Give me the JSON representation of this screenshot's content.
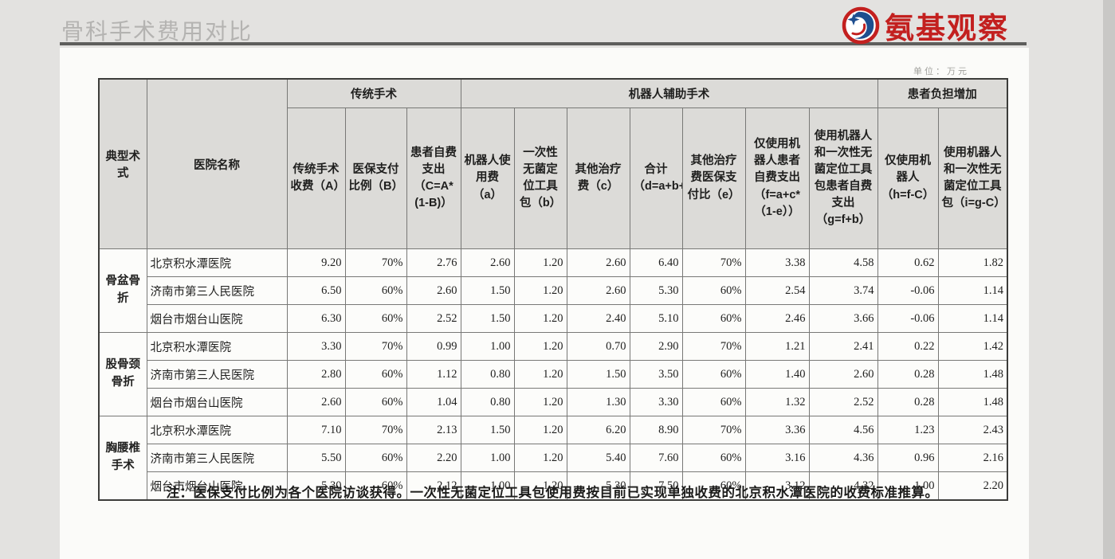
{
  "slide": {
    "title": "骨科手术费用对比",
    "unit_note": "单位：万元",
    "footnote": "注：医保支付比例为各个医院访谈获得。一次性无菌定位工具包使用费按目前已实现单独收费的北京积水潭医院的收费标准推算。"
  },
  "logo": {
    "text": "氨基观察",
    "accent_red": "#c3201f",
    "accent_blue": "#1d4e8f"
  },
  "table": {
    "corner_headers": [
      "典型术式",
      "医院名称"
    ],
    "groups": [
      {
        "label": "传统手术",
        "span": 3
      },
      {
        "label": "机器人辅助手术",
        "span": 7
      },
      {
        "label": "患者负担增加",
        "span": 2
      }
    ],
    "columns": [
      "传统手术收费（A）",
      "医保支付比例（B）",
      "患者自费支出（C=A*(1-B)）",
      "机器人使用费（a）",
      "一次性无菌定位工具包（b）",
      "其他治疗费（c）",
      "合计（d=a+b+c）",
      "其他治疗费医保支付比（e）",
      "仅使用机器人患者自费支出（f=a+c*（1-e））",
      "使用机器人和一次性无菌定位工具包患者自费支出（g=f+b）",
      "仅使用机器人（h=f-C）",
      "使用机器人和一次性无菌定位工具包（i=g-C）"
    ],
    "row_groups": [
      {
        "procedure": "骨盆骨折",
        "rows": [
          {
            "hospital": "北京积水潭医院",
            "values": [
              "9.20",
              "70%",
              "2.76",
              "2.60",
              "1.20",
              "2.60",
              "6.40",
              "70%",
              "3.38",
              "4.58",
              "0.62",
              "1.82"
            ]
          },
          {
            "hospital": "济南市第三人民医院",
            "values": [
              "6.50",
              "60%",
              "2.60",
              "1.50",
              "1.20",
              "2.60",
              "5.30",
              "60%",
              "2.54",
              "3.74",
              "-0.06",
              "1.14"
            ]
          },
          {
            "hospital": "烟台市烟台山医院",
            "values": [
              "6.30",
              "60%",
              "2.52",
              "1.50",
              "1.20",
              "2.40",
              "5.10",
              "60%",
              "2.46",
              "3.66",
              "-0.06",
              "1.14"
            ]
          }
        ]
      },
      {
        "procedure": "股骨颈骨折",
        "rows": [
          {
            "hospital": "北京积水潭医院",
            "values": [
              "3.30",
              "70%",
              "0.99",
              "1.00",
              "1.20",
              "0.70",
              "2.90",
              "70%",
              "1.21",
              "2.41",
              "0.22",
              "1.42"
            ]
          },
          {
            "hospital": "济南市第三人民医院",
            "values": [
              "2.80",
              "60%",
              "1.12",
              "0.80",
              "1.20",
              "1.50",
              "3.50",
              "60%",
              "1.40",
              "2.60",
              "0.28",
              "1.48"
            ]
          },
          {
            "hospital": "烟台市烟台山医院",
            "values": [
              "2.60",
              "60%",
              "1.04",
              "0.80",
              "1.20",
              "1.30",
              "3.30",
              "60%",
              "1.32",
              "2.52",
              "0.28",
              "1.48"
            ]
          }
        ]
      },
      {
        "procedure": "胸腰椎手术",
        "rows": [
          {
            "hospital": "北京积水潭医院",
            "values": [
              "7.10",
              "70%",
              "2.13",
              "1.50",
              "1.20",
              "6.20",
              "8.90",
              "70%",
              "3.36",
              "4.56",
              "1.23",
              "2.43"
            ]
          },
          {
            "hospital": "济南市第三人民医院",
            "values": [
              "5.50",
              "60%",
              "2.20",
              "1.00",
              "1.20",
              "5.40",
              "7.60",
              "60%",
              "3.16",
              "4.36",
              "0.96",
              "2.16"
            ]
          },
          {
            "hospital": "烟台市烟台山医院",
            "values": [
              "5.30",
              "60%",
              "2.12",
              "1.00",
              "1.20",
              "5.30",
              "7.50",
              "60%",
              "3.12",
              "4.32",
              "1.00",
              "2.20"
            ]
          }
        ]
      }
    ]
  }
}
